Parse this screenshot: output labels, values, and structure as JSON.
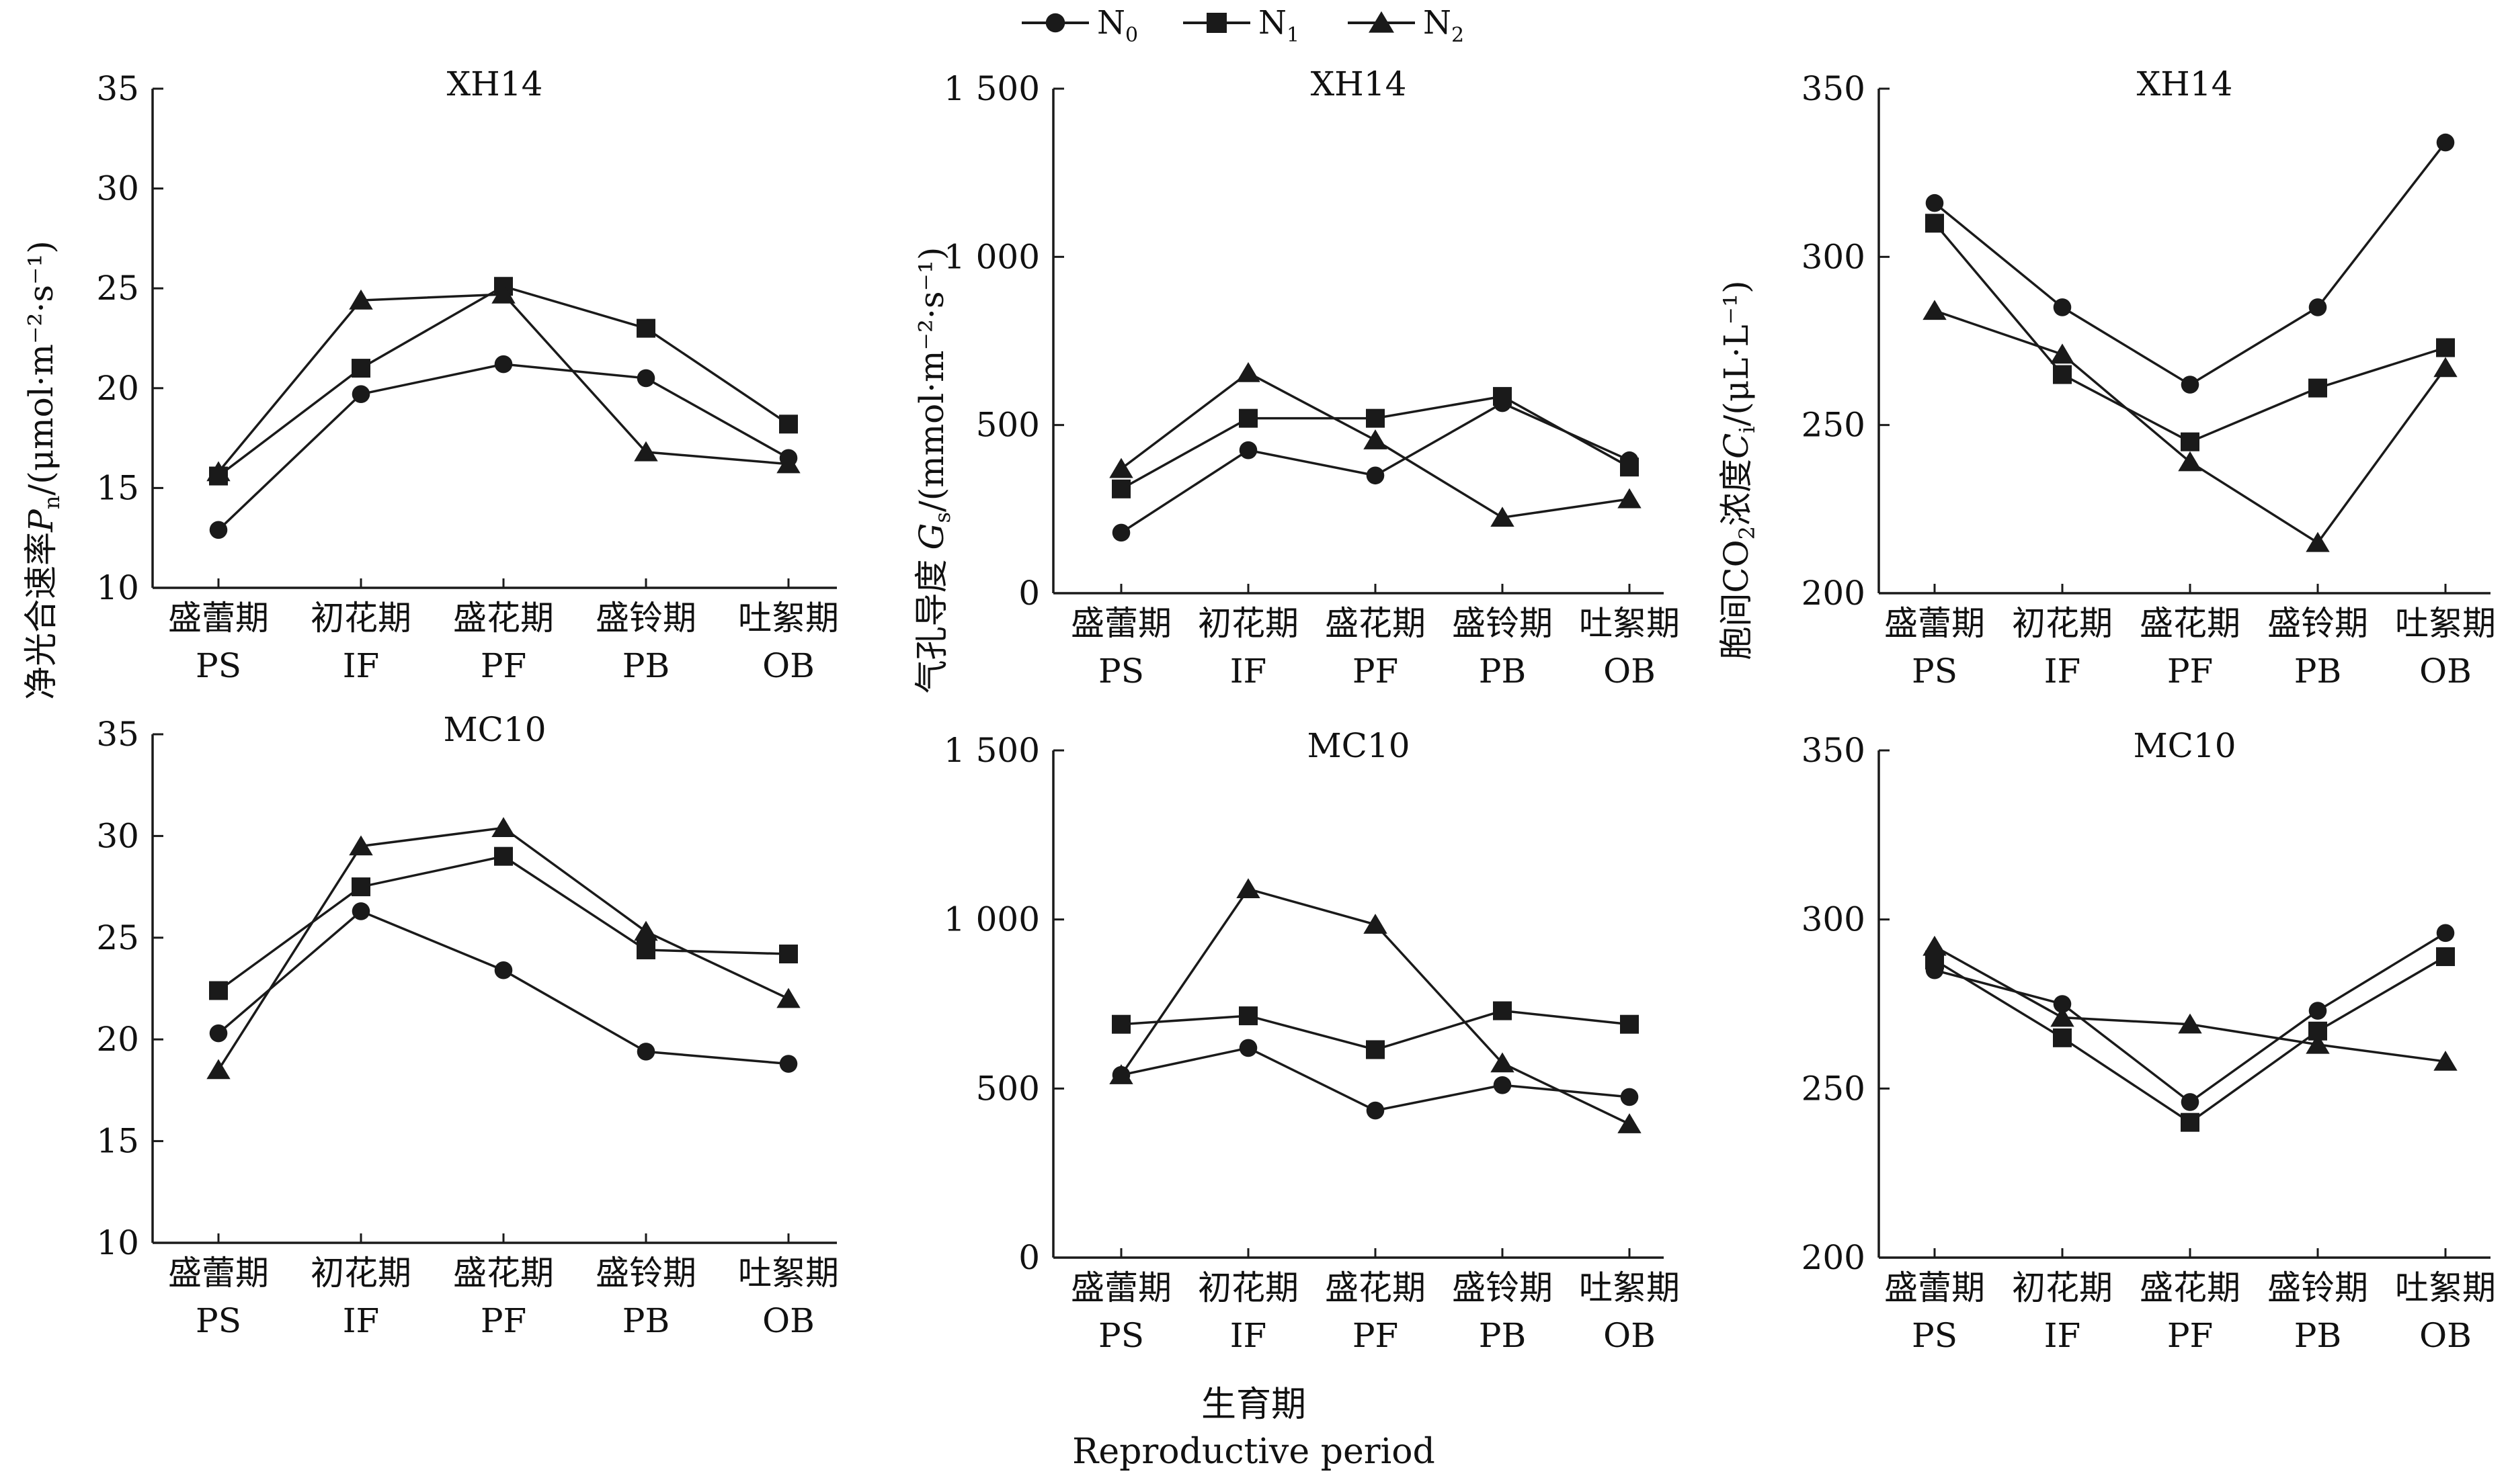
{
  "legend": [
    {
      "name": "N",
      "sub": "0",
      "marker": "circle"
    },
    {
      "name": "N",
      "sub": "1",
      "marker": "square"
    },
    {
      "name": "N",
      "sub": "2",
      "marker": "triangle"
    }
  ],
  "xlabel": {
    "zh": "生育期",
    "en": "Reproductive period"
  },
  "ylabels": {
    "pn": {
      "main": "净光合速率",
      "sym": "P",
      "sub": "n",
      "unit": "/(μmol·m⁻²·s⁻¹)"
    },
    "gs": {
      "main": "气孔导度",
      "sym": "G",
      "sub": "s",
      "unit": "/(mmol·m⁻²·s⁻¹)"
    },
    "ci": {
      "pre": "胞间CO",
      "pre_sub": "2",
      "main": "浓度",
      "sym": "C",
      "sub": "i",
      "unit": "/(μL·L⁻¹)"
    }
  },
  "colors": {
    "line": "#1a1a1a"
  },
  "chart_data": [
    {
      "type": "line",
      "panel": "pn-xh14",
      "title": "XH14",
      "categories": [
        "盛蕾期",
        "初花期",
        "盛花期",
        "盛铃期",
        "吐絮期"
      ],
      "categories_en": [
        "PS",
        "IF",
        "PF",
        "PB",
        "OB"
      ],
      "ylim": [
        10,
        35
      ],
      "yticks": [
        "10",
        "15",
        "20",
        "25",
        "30",
        "35"
      ],
      "ytick_values": [
        10,
        15,
        20,
        25,
        30,
        35
      ],
      "series": [
        {
          "name": "N0",
          "marker": "circle",
          "values": [
            12.9,
            19.7,
            21.2,
            20.5,
            16.5
          ]
        },
        {
          "name": "N1",
          "marker": "square",
          "values": [
            15.6,
            21.0,
            25.1,
            23.0,
            18.2
          ]
        },
        {
          "name": "N2",
          "marker": "triangle",
          "values": [
            15.8,
            24.4,
            24.7,
            16.8,
            16.2
          ]
        }
      ]
    },
    {
      "type": "line",
      "panel": "gs-xh14",
      "title": "XH14",
      "categories": [
        "盛蕾期",
        "初花期",
        "盛花期",
        "盛铃期",
        "吐絮期"
      ],
      "categories_en": [
        "PS",
        "IF",
        "PF",
        "PB",
        "OB"
      ],
      "ylim": [
        0,
        1500
      ],
      "yticks": [
        "0",
        "500",
        "1 000",
        "1 500"
      ],
      "ytick_values": [
        0,
        500,
        1000,
        1500
      ],
      "series": [
        {
          "name": "N0",
          "marker": "circle",
          "values": [
            180,
            425,
            350,
            565,
            395
          ]
        },
        {
          "name": "N1",
          "marker": "square",
          "values": [
            310,
            520,
            520,
            585,
            375
          ]
        },
        {
          "name": "N2",
          "marker": "triangle",
          "values": [
            370,
            655,
            455,
            225,
            280
          ]
        }
      ]
    },
    {
      "type": "line",
      "panel": "ci-xh14",
      "title": "XH14",
      "categories": [
        "盛蕾期",
        "初花期",
        "盛花期",
        "盛铃期",
        "吐絮期"
      ],
      "categories_en": [
        "PS",
        "IF",
        "PF",
        "PB",
        "OB"
      ],
      "ylim": [
        200,
        350
      ],
      "yticks": [
        "200",
        "250",
        "300",
        "350"
      ],
      "ytick_values": [
        200,
        250,
        300,
        350
      ],
      "series": [
        {
          "name": "N0",
          "marker": "circle",
          "values": [
            316,
            285,
            262,
            285,
            334
          ]
        },
        {
          "name": "N1",
          "marker": "square",
          "values": [
            310,
            265,
            245,
            261,
            273
          ]
        },
        {
          "name": "N2",
          "marker": "triangle",
          "values": [
            284,
            271,
            239,
            215,
            267
          ]
        }
      ]
    },
    {
      "type": "line",
      "panel": "pn-mc10",
      "title": "MC10",
      "categories": [
        "盛蕾期",
        "初花期",
        "盛花期",
        "盛铃期",
        "吐絮期"
      ],
      "categories_en": [
        "PS",
        "IF",
        "PF",
        "PB",
        "OB"
      ],
      "ylim": [
        10,
        35
      ],
      "yticks": [
        "10",
        "15",
        "20",
        "25",
        "30",
        "35"
      ],
      "ytick_values": [
        10,
        15,
        20,
        25,
        30,
        35
      ],
      "series": [
        {
          "name": "N0",
          "marker": "circle",
          "values": [
            20.3,
            26.3,
            23.4,
            19.4,
            18.8
          ]
        },
        {
          "name": "N1",
          "marker": "square",
          "values": [
            22.4,
            27.5,
            29.0,
            24.4,
            24.2
          ]
        },
        {
          "name": "N2",
          "marker": "triangle",
          "values": [
            18.5,
            29.5,
            30.4,
            25.3,
            22.0
          ]
        }
      ]
    },
    {
      "type": "line",
      "panel": "gs-mc10",
      "title": "MC10",
      "categories": [
        "盛蕾期",
        "初花期",
        "盛花期",
        "盛铃期",
        "吐絮期"
      ],
      "categories_en": [
        "PS",
        "IF",
        "PF",
        "PB",
        "OB"
      ],
      "ylim": [
        0,
        1500
      ],
      "yticks": [
        "0",
        "500",
        "1 000",
        "1 500"
      ],
      "ytick_values": [
        0,
        500,
        1000,
        1500
      ],
      "series": [
        {
          "name": "N0",
          "marker": "circle",
          "values": [
            540,
            620,
            435,
            510,
            475
          ]
        },
        {
          "name": "N1",
          "marker": "square",
          "values": [
            690,
            715,
            615,
            730,
            690
          ]
        },
        {
          "name": "N2",
          "marker": "triangle",
          "values": [
            540,
            1090,
            985,
            575,
            395
          ]
        }
      ]
    },
    {
      "type": "line",
      "panel": "ci-mc10",
      "title": "MC10",
      "categories": [
        "盛蕾期",
        "初花期",
        "盛花期",
        "盛铃期",
        "吐絮期"
      ],
      "categories_en": [
        "PS",
        "IF",
        "PF",
        "PB",
        "OB"
      ],
      "ylim": [
        200,
        350
      ],
      "yticks": [
        "200",
        "250",
        "300",
        "350"
      ],
      "ytick_values": [
        200,
        250,
        300,
        350
      ],
      "series": [
        {
          "name": "N0",
          "marker": "circle",
          "values": [
            285,
            275,
            246,
            273,
            296
          ]
        },
        {
          "name": "N1",
          "marker": "square",
          "values": [
            288,
            265,
            240,
            267,
            289
          ]
        },
        {
          "name": "N2",
          "marker": "triangle",
          "values": [
            292,
            271,
            269,
            263,
            258
          ]
        }
      ]
    }
  ]
}
